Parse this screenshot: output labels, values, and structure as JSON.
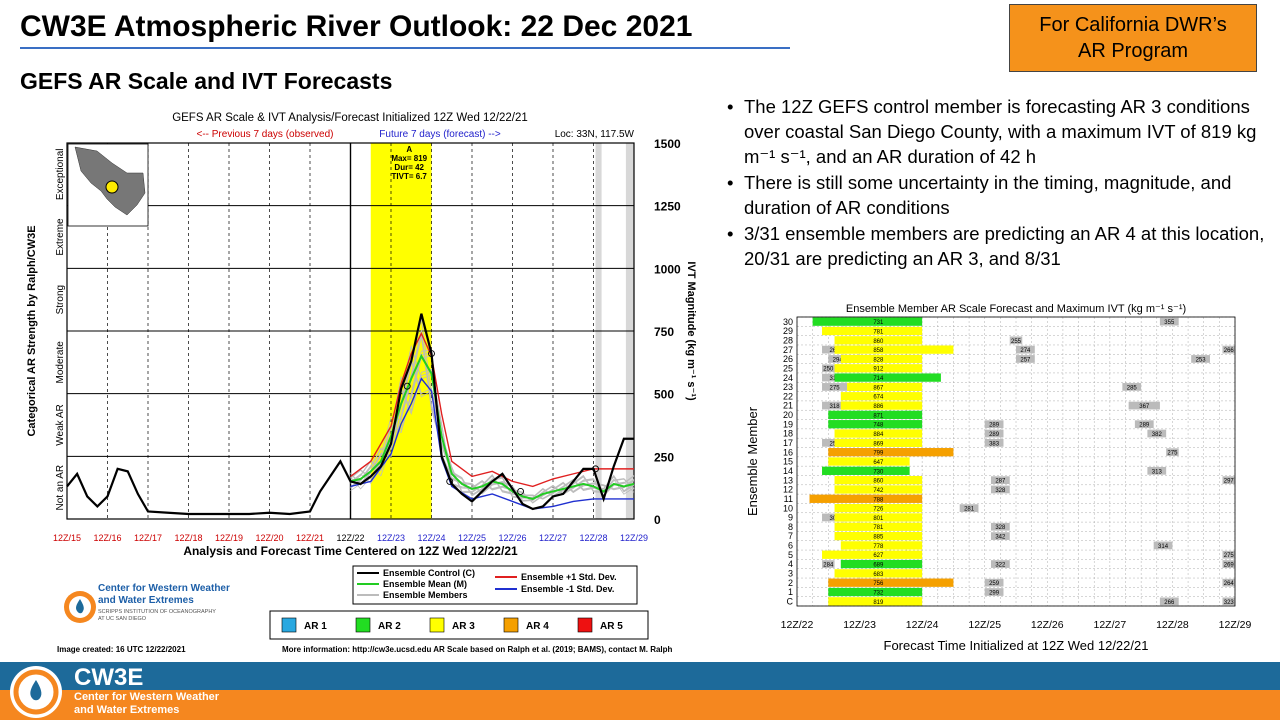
{
  "slide": {
    "title": "CW3E Atmospheric River Outlook: 22 Dec 2021",
    "subtitle": "GEFS AR Scale and IVT Forecasts",
    "program_line1": "For California DWR’s",
    "program_line2": "AR Program"
  },
  "bullets": [
    "The 12Z GEFS control member  is forecasting AR 3 conditions over coastal San Diego County, with a maximum  IVT of 819 kg m⁻¹ s⁻¹, and an AR duration of 42 h",
    "There is still some uncertainty in the timing, magnitude,  and duration of AR conditions",
    "3/31 ensemble  members  are predicting  an AR 4 at this location, 20/31 are predicting  an AR 3, and 8/31"
  ],
  "left_panel": {
    "image_created": "Image created: 16 UTC 12/22/2021",
    "more_info": "More information: http://cw3e.ucsd.edu  AR Scale based on Ralph et al. (2019; BAMS), contact M. Ralph",
    "logo_line1": "Center for Western Weather",
    "logo_line2": "and Water Extremes",
    "logo_line3": "SCRIPPS INSTITUTION OF OCEANOGRAPHY",
    "logo_line4": "AT UC SAN DIEGO"
  },
  "footer": {
    "name": "CW3E",
    "line1": "Center for Western Weather",
    "line2": "and Water Extremes"
  },
  "colors": {
    "ar1": "#29a8e0",
    "ar2": "#22dd22",
    "ar3": "#ffff00",
    "ar4": "#f5a000",
    "ar5": "#ee1111",
    "observed": "#cc0000",
    "forecast": "#2222cc",
    "accent": "#3a6fc4",
    "footer_blue": "#1d6a9a",
    "footer_orange": "#f5871f"
  },
  "chart_data": [
    {
      "type": "line",
      "title": "GEFS AR Scale & IVT Analysis/Forecast Initialized 12Z Wed 12/22/21",
      "observed_label": "<-- Previous 7 days (observed)",
      "forecast_label": "Future 7 days (forecast) -->",
      "location": "Loc: 33N, 117.5W",
      "xlabel": "Analysis and Forecast Time Centered on 12Z Wed 12/22/21",
      "ylabel_right": "IVT Magnitude (kg m⁻¹ s⁻¹)",
      "ylabel_left": "Categorical AR Strength by Ralph/CW3E",
      "ylim": [
        0,
        1500
      ],
      "yticks": [
        "0",
        "250",
        "500",
        "750",
        "1000",
        "1250",
        "1500"
      ],
      "x_ticks": [
        "12Z/15",
        "12Z/16",
        "12Z/17",
        "12Z/18",
        "12Z/19",
        "12Z/20",
        "12Z/21",
        "12Z/22",
        "12Z/23",
        "12Z/24",
        "12Z/25",
        "12Z/26",
        "12Z/27",
        "12Z/28",
        "12Z/29"
      ],
      "categories": [
        "Not an AR",
        "Weak AR",
        "Moderate",
        "Strong",
        "Extreme",
        "Exceptional"
      ],
      "annotation": {
        "label": "A",
        "max": "Max= 819",
        "dur": "Dur= 42",
        "tivt": "TIVT= 6.7"
      },
      "control_series": {
        "name": "Ensemble Control (C)",
        "x": [
          0,
          0.25,
          0.5,
          0.75,
          1,
          1.25,
          1.5,
          1.75,
          2,
          2.5,
          3,
          3.5,
          4,
          4.5,
          5,
          5.5,
          6,
          6.25,
          6.5,
          6.75,
          7,
          7.25,
          7.5,
          7.75,
          8,
          8.25,
          8.5,
          8.75,
          9,
          9.25,
          9.5,
          9.75,
          10,
          10.25,
          10.5,
          10.75,
          11,
          11.25,
          11.5,
          11.75,
          12,
          12.25,
          12.5,
          12.75,
          13,
          13.25,
          13.5,
          13.75,
          14
        ],
        "values": [
          130,
          180,
          90,
          50,
          90,
          200,
          190,
          100,
          30,
          25,
          20,
          20,
          20,
          20,
          25,
          20,
          30,
          110,
          170,
          230,
          150,
          140,
          170,
          210,
          300,
          520,
          630,
          819,
          660,
          250,
          140,
          100,
          70,
          110,
          150,
          180,
          120,
          60,
          40,
          50,
          90,
          100,
          150,
          200,
          200,
          80,
          210,
          320,
          320
        ]
      },
      "mean_series": {
        "name": "Ensemble Mean (M)",
        "x": [
          7,
          7.25,
          7.5,
          7.75,
          8,
          8.25,
          8.5,
          8.75,
          9,
          9.25,
          9.5,
          9.75,
          10,
          10.25,
          10.5,
          10.75,
          11,
          11.25,
          11.5,
          11.75,
          12,
          12.25,
          12.5,
          12.75,
          13,
          13.25,
          13.5,
          13.75,
          14
        ],
        "values": [
          150,
          160,
          190,
          230,
          330,
          460,
          560,
          650,
          580,
          330,
          180,
          140,
          120,
          130,
          150,
          140,
          110,
          90,
          80,
          100,
          110,
          120,
          130,
          140,
          130,
          110,
          140,
          130,
          140
        ]
      },
      "plus_std_series": {
        "name": "Ensemble +1 Std. Dev.",
        "x": [
          7,
          7.5,
          8,
          8.25,
          8.5,
          8.75,
          9,
          9.25,
          9.5,
          10,
          10.5,
          11,
          11.5,
          12,
          12.5,
          13,
          13.5,
          14
        ],
        "values": [
          170,
          230,
          370,
          540,
          660,
          740,
          650,
          420,
          230,
          170,
          190,
          150,
          130,
          160,
          180,
          200,
          200,
          200
        ]
      },
      "minus_std_series": {
        "name": "Ensemble -1 Std. Dev.",
        "x": [
          7,
          7.5,
          8,
          8.25,
          8.5,
          8.75,
          9,
          9.25,
          9.5,
          10,
          10.5,
          11,
          11.5,
          12,
          12.5,
          13,
          13.5,
          14
        ],
        "values": [
          130,
          150,
          260,
          380,
          460,
          560,
          510,
          240,
          130,
          80,
          100,
          70,
          40,
          50,
          70,
          80,
          80,
          80
        ]
      },
      "members_label": "Ensemble Members",
      "legend_ar": [
        "AR 1",
        "AR 2",
        "AR 3",
        "AR 4",
        "AR 5"
      ]
    },
    {
      "type": "heatmap",
      "title": "Ensemble Member AR Scale Forecast and Maximum IVT (kg m⁻¹ s⁻¹)",
      "xlabel": "Forecast Time Initialized at 12Z Wed 12/22/21",
      "ylabel": "Ensemble Member",
      "x_ticks": [
        "12Z/22",
        "12Z/23",
        "12Z/24",
        "12Z/25",
        "12Z/26",
        "12Z/27",
        "12Z/28",
        "12Z/29"
      ],
      "x_range_days": [
        0,
        7
      ],
      "members": [
        {
          "label": "30",
          "start": 0.25,
          "end": 2.0,
          "ar": 2,
          "max": "731",
          "extras": [
            {
              "start": 5.8,
              "end": 6.1,
              "max": "355"
            }
          ]
        },
        {
          "label": "29",
          "start": 0.4,
          "end": 2.0,
          "ar": 3,
          "max": "781",
          "extras": []
        },
        {
          "label": "28",
          "start": 0.6,
          "end": 2.0,
          "ar": 3,
          "max": "860",
          "extras": [
            {
              "start": 3.4,
              "end": 3.6,
              "max": "255"
            }
          ]
        },
        {
          "label": "27",
          "start": 0.6,
          "end": 2.5,
          "ar": 3,
          "max": "858",
          "extras": [
            {
              "start": 0.4,
              "end": 0.8,
              "max": "264"
            },
            {
              "start": 3.5,
              "end": 3.8,
              "max": "274"
            },
            {
              "start": 6.8,
              "end": 7.0,
              "max": "266"
            }
          ]
        },
        {
          "label": "26",
          "start": 0.7,
          "end": 2.0,
          "ar": 3,
          "max": "828",
          "extras": [
            {
              "start": 0.5,
              "end": 0.8,
              "max": "294"
            },
            {
              "start": 3.5,
              "end": 3.8,
              "max": "257"
            },
            {
              "start": 6.3,
              "end": 6.6,
              "max": "253"
            }
          ]
        },
        {
          "label": "25",
          "start": 0.6,
          "end": 2.0,
          "ar": 3,
          "max": "912",
          "extras": [
            {
              "start": 0.4,
              "end": 0.6,
              "max": "250"
            }
          ]
        },
        {
          "label": "24",
          "start": 0.6,
          "end": 2.3,
          "ar": 2,
          "max": "714",
          "extras": [
            {
              "start": 0.4,
              "end": 0.8,
              "max": "312"
            }
          ]
        },
        {
          "label": "23",
          "start": 0.8,
          "end": 2.0,
          "ar": 3,
          "max": "867",
          "extras": [
            {
              "start": 0.4,
              "end": 0.8,
              "max": "275"
            },
            {
              "start": 5.2,
              "end": 5.5,
              "max": "285"
            }
          ]
        },
        {
          "label": "22",
          "start": 0.7,
          "end": 2.0,
          "ar": 3,
          "max": "674",
          "extras": []
        },
        {
          "label": "21",
          "start": 0.7,
          "end": 2.0,
          "ar": 3,
          "max": "886",
          "extras": [
            {
              "start": 0.4,
              "end": 0.8,
              "max": "318"
            },
            {
              "start": 5.3,
              "end": 5.8,
              "max": "367"
            }
          ]
        },
        {
          "label": "20",
          "start": 0.5,
          "end": 2.0,
          "ar": 2,
          "max": "871",
          "extras": []
        },
        {
          "label": "19",
          "start": 0.5,
          "end": 2.0,
          "ar": 2,
          "max": "748",
          "extras": [
            {
              "start": 3.0,
              "end": 3.3,
              "max": "289"
            },
            {
              "start": 5.4,
              "end": 5.7,
              "max": "289"
            }
          ]
        },
        {
          "label": "18",
          "start": 0.6,
          "end": 2.0,
          "ar": 3,
          "max": "884",
          "extras": [
            {
              "start": 3.0,
              "end": 3.3,
              "max": "289"
            },
            {
              "start": 5.6,
              "end": 5.9,
              "max": "382"
            }
          ]
        },
        {
          "label": "17",
          "start": 0.6,
          "end": 2.0,
          "ar": 3,
          "max": "869",
          "extras": [
            {
              "start": 0.4,
              "end": 0.8,
              "max": "258"
            },
            {
              "start": 3.0,
              "end": 3.3,
              "max": "383"
            }
          ]
        },
        {
          "label": "16",
          "start": 0.5,
          "end": 2.5,
          "ar": 4,
          "max": "799",
          "extras": [
            {
              "start": 5.9,
              "end": 6.1,
              "max": "275"
            }
          ]
        },
        {
          "label": "15",
          "start": 0.5,
          "end": 1.8,
          "ar": 3,
          "max": "647",
          "extras": []
        },
        {
          "label": "14",
          "start": 0.4,
          "end": 1.8,
          "ar": 2,
          "max": "730",
          "extras": [
            {
              "start": 5.6,
              "end": 5.9,
              "max": "313"
            }
          ]
        },
        {
          "label": "13",
          "start": 0.6,
          "end": 2.0,
          "ar": 3,
          "max": "860",
          "extras": [
            {
              "start": 3.1,
              "end": 3.4,
              "max": "287"
            },
            {
              "start": 6.8,
              "end": 7.0,
              "max": "297"
            }
          ]
        },
        {
          "label": "12",
          "start": 0.6,
          "end": 2.0,
          "ar": 3,
          "max": "742",
          "extras": [
            {
              "start": 3.1,
              "end": 3.4,
              "max": "328"
            }
          ]
        },
        {
          "label": "11",
          "start": 0.2,
          "end": 2.0,
          "ar": 4,
          "max": "788",
          "extras": []
        },
        {
          "label": "10",
          "start": 0.6,
          "end": 2.0,
          "ar": 3,
          "max": "726",
          "extras": [
            {
              "start": 2.6,
              "end": 2.9,
              "max": "281"
            }
          ]
        },
        {
          "label": "9",
          "start": 0.6,
          "end": 2.0,
          "ar": 3,
          "max": "801",
          "extras": [
            {
              "start": 0.4,
              "end": 0.8,
              "max": "302"
            }
          ]
        },
        {
          "label": "8",
          "start": 0.6,
          "end": 2.0,
          "ar": 3,
          "max": "781",
          "extras": [
            {
              "start": 3.1,
              "end": 3.4,
              "max": "328"
            }
          ]
        },
        {
          "label": "7",
          "start": 0.6,
          "end": 2.0,
          "ar": 3,
          "max": "885",
          "extras": [
            {
              "start": 3.1,
              "end": 3.4,
              "max": "342"
            }
          ]
        },
        {
          "label": "6",
          "start": 0.7,
          "end": 2.0,
          "ar": 3,
          "max": "778",
          "extras": [
            {
              "start": 5.7,
              "end": 6.0,
              "max": "314"
            }
          ]
        },
        {
          "label": "5",
          "start": 0.4,
          "end": 2.0,
          "ar": 3,
          "max": "627",
          "extras": [
            {
              "start": 6.8,
              "end": 7.0,
              "max": "275"
            }
          ]
        },
        {
          "label": "4",
          "start": 0.7,
          "end": 2.0,
          "ar": 2,
          "max": "689",
          "extras": [
            {
              "start": 0.4,
              "end": 0.6,
              "max": "284"
            },
            {
              "start": 3.1,
              "end": 3.4,
              "max": "322"
            },
            {
              "start": 6.8,
              "end": 7.0,
              "max": "269"
            }
          ]
        },
        {
          "label": "3",
          "start": 0.6,
          "end": 2.0,
          "ar": 3,
          "max": "683",
          "extras": []
        },
        {
          "label": "2",
          "start": 0.5,
          "end": 2.5,
          "ar": 4,
          "max": "756",
          "extras": [
            {
              "start": 3.0,
              "end": 3.3,
              "max": "259"
            },
            {
              "start": 6.8,
              "end": 7.0,
              "max": "264"
            }
          ]
        },
        {
          "label": "1",
          "start": 0.5,
          "end": 2.0,
          "ar": 2,
          "max": "732",
          "extras": [
            {
              "start": 3.0,
              "end": 3.3,
              "max": "299"
            }
          ]
        },
        {
          "label": "C",
          "start": 0.5,
          "end": 2.0,
          "ar": 3,
          "max": "819",
          "extras": [
            {
              "start": 5.8,
              "end": 6.1,
              "max": "266"
            },
            {
              "start": 6.8,
              "end": 7.0,
              "max": "323"
            }
          ]
        }
      ]
    }
  ]
}
